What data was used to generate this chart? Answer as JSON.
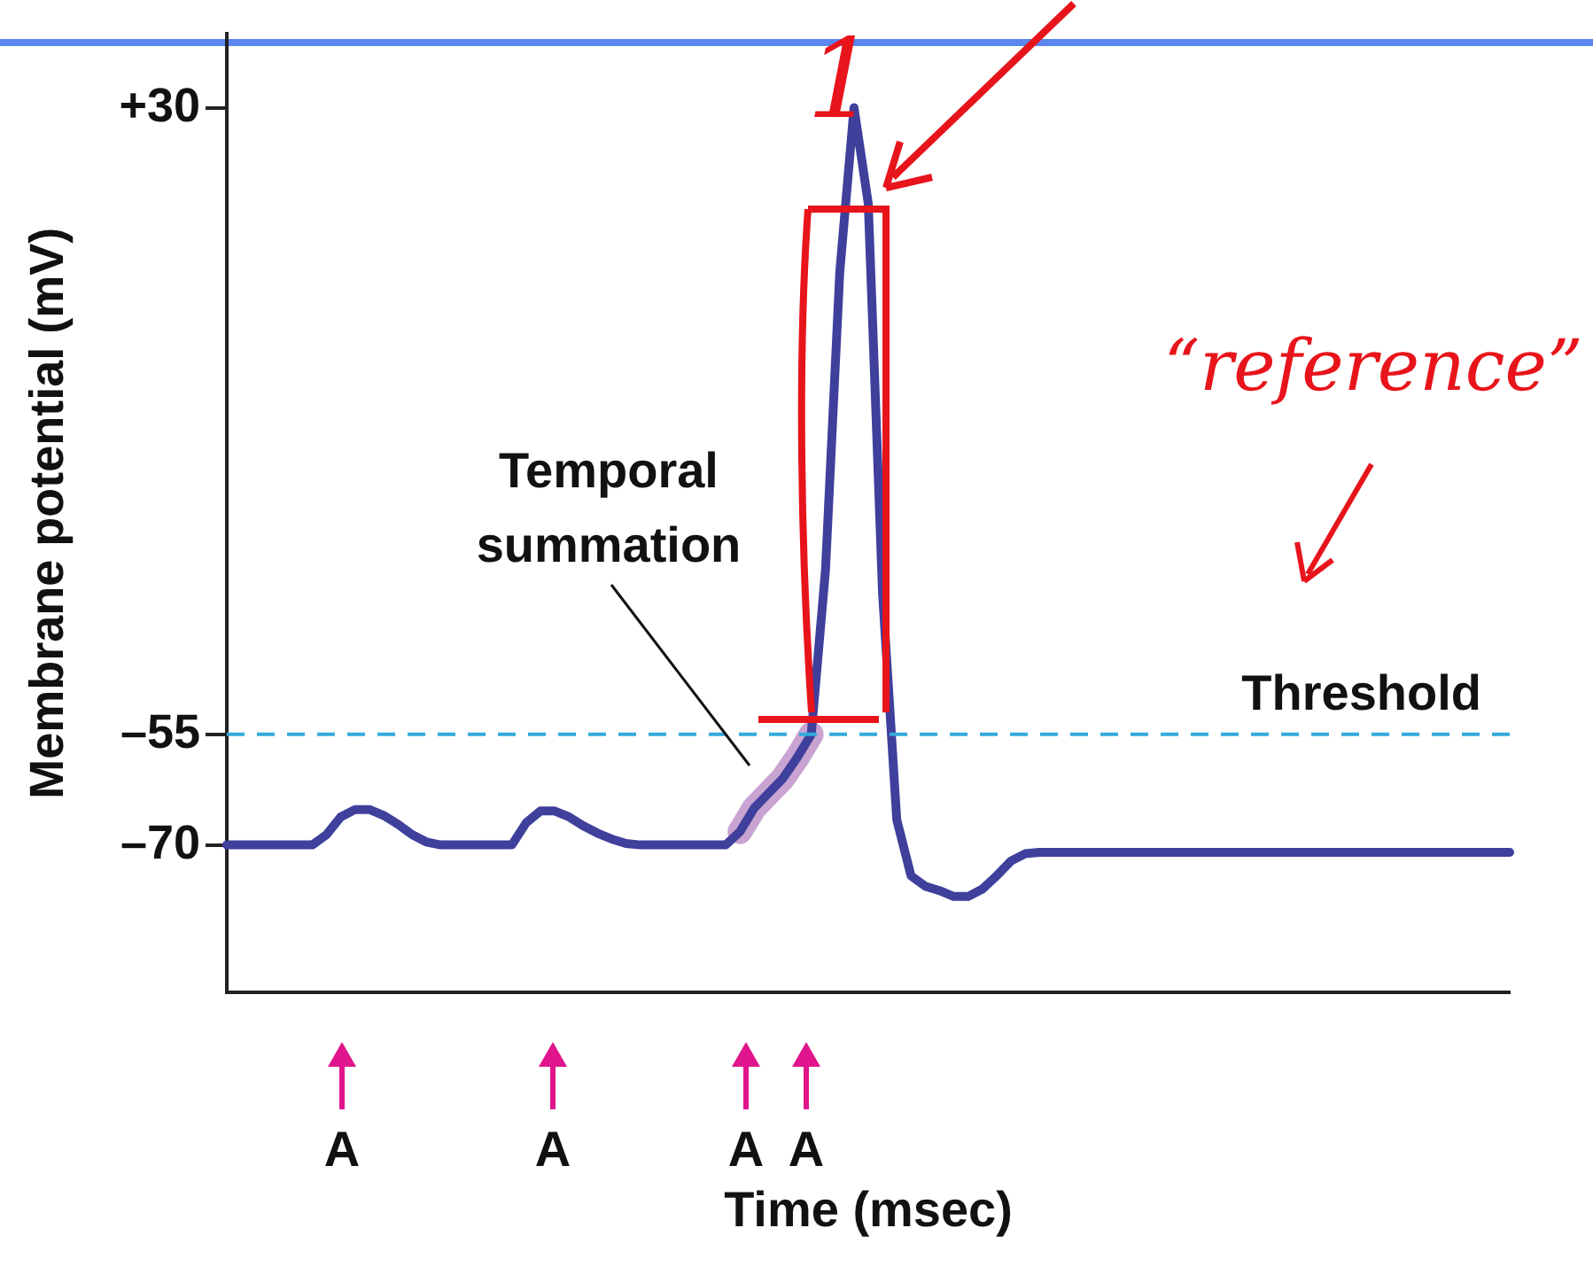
{
  "chart_data": {
    "type": "line",
    "xlabel": "Time (msec)",
    "ylabel": "Membrane potential (mV)",
    "categories": [
      null,
      null,
      null,
      null,
      null,
      null,
      null,
      null,
      null,
      null,
      null,
      null,
      null,
      null,
      null,
      null,
      null,
      null,
      null,
      null,
      null,
      null,
      null,
      null,
      null,
      null,
      null,
      null,
      null,
      null,
      null,
      null,
      null,
      null,
      null,
      null,
      null,
      null,
      null,
      null,
      null,
      null,
      null,
      null,
      null,
      null,
      null,
      null,
      null,
      null,
      null,
      null,
      null,
      null,
      null,
      null,
      null,
      null,
      null,
      null,
      null,
      null,
      null,
      null,
      null,
      null,
      null,
      null,
      null,
      null,
      null,
      null,
      null,
      null,
      null,
      null,
      null,
      null,
      null,
      null,
      null,
      null,
      null,
      null,
      null,
      null,
      null,
      null,
      null,
      null,
      null
    ],
    "series": [
      {
        "color": "#c9a3d1",
        "values": [
          null,
          null,
          null,
          null,
          null,
          null,
          null,
          null,
          null,
          null,
          null,
          null,
          null,
          null,
          null,
          null,
          null,
          null,
          null,
          null,
          null,
          null,
          null,
          null,
          null,
          null,
          null,
          null,
          null,
          null,
          null,
          null,
          null,
          null,
          null,
          null,
          -68.2,
          -65,
          -63,
          -61,
          -58.2,
          -55,
          null,
          null,
          null,
          null,
          null,
          null,
          null,
          null,
          null,
          null,
          null,
          null,
          null,
          null,
          null,
          null,
          null,
          null,
          null,
          null,
          null,
          null,
          null,
          null,
          null,
          null,
          null,
          null,
          null,
          null,
          null,
          null,
          null,
          null,
          null,
          null,
          null,
          null,
          null,
          null,
          null,
          null,
          null,
          null,
          null,
          null,
          null,
          null,
          null
        ]
      },
      {
        "color": "#3f3f9c",
        "values": [
          -70,
          -70,
          -70,
          -70,
          -70,
          -70,
          -70,
          -68.6,
          -66.2,
          -65.2,
          -65.2,
          -66,
          -67.2,
          -68.6,
          -69.6,
          -70,
          -70,
          -70,
          -70,
          -70,
          -70,
          -67,
          -65.4,
          -65.4,
          -66.2,
          -67.4,
          -68.4,
          -69.2,
          -69.8,
          -70,
          -70,
          -70,
          -70,
          -70,
          -70,
          -70,
          -68.2,
          -65,
          -63,
          -61,
          -58.2,
          -55,
          -32.7,
          7.7,
          30,
          17,
          -35.8,
          -66.6,
          -74.2,
          -75.6,
          -76.2,
          -77,
          -77,
          -76,
          -74.2,
          -72.2,
          -71.2,
          -71,
          -71,
          -71,
          -71,
          -71,
          -71,
          -71,
          -71,
          -71,
          -71,
          -71,
          -71,
          -71,
          -71,
          -71,
          -71,
          -71,
          -71,
          -71,
          -71,
          -71,
          -71,
          -71,
          -71,
          -71,
          -71,
          -71,
          -71,
          -71,
          -71,
          -71,
          -71,
          -71,
          -71
        ]
      }
    ],
    "ylim": [
      -90,
      40
    ],
    "yticks": [
      {
        "value": 30,
        "label": "+30"
      },
      {
        "value": -55,
        "label": "–55"
      },
      {
        "value": -70,
        "label": "–70"
      }
    ],
    "tick_labels": "y",
    "ref_lines": [
      {
        "axis": "y",
        "value": -55,
        "label": "Threshold",
        "color": "#33aadd",
        "line_style": "dashed"
      }
    ],
    "annotations": [
      "Temporal summation",
      "A",
      "A",
      "A",
      "A",
      "1",
      "“reference”"
    ],
    "grid": false,
    "legend": false,
    "marker": "none"
  }
}
